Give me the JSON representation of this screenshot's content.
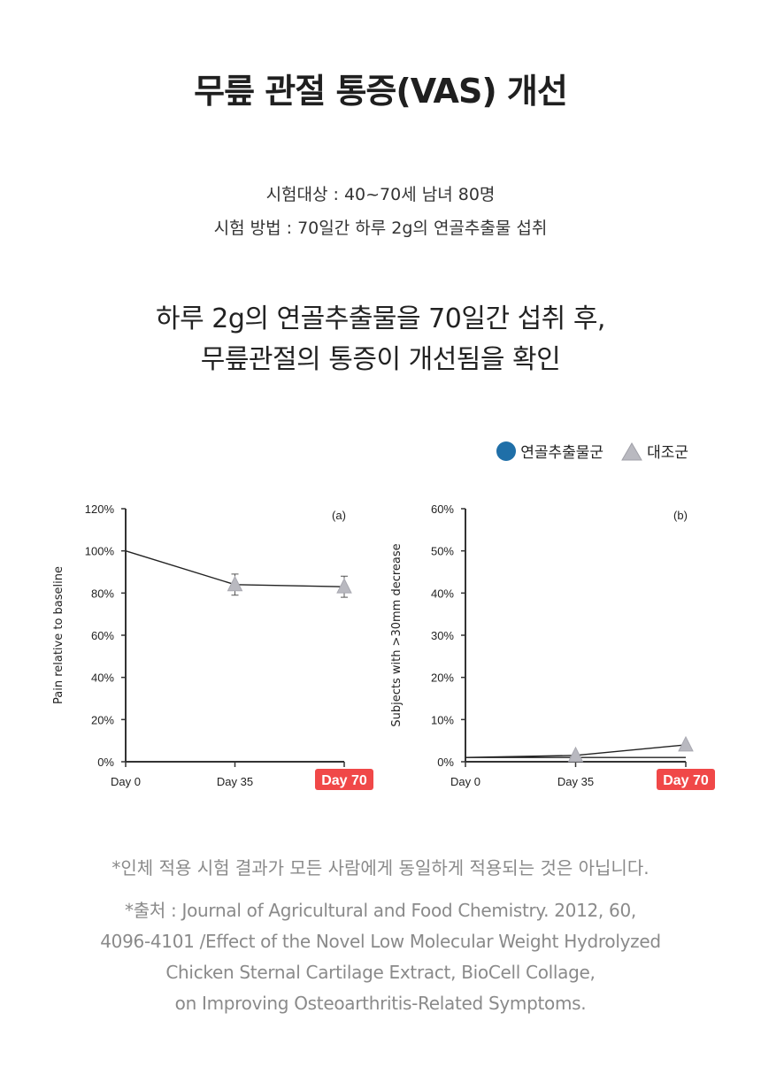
{
  "title": "무릎 관절 통증(VAS) 개선",
  "info": {
    "subjects": "시험대상 : 40~70세 남녀 80명",
    "method": "시험 방법 : 70일간 하루 2g의 연골추출물 섭취"
  },
  "headline": {
    "line1": "하루 2g의 연골추출물을 70일간 섭취 후,",
    "line2": "무릎관절의 통증이 개선됨을 확인"
  },
  "legend": {
    "series1": "연골추출물군",
    "series2": "대조군"
  },
  "colors": {
    "series1": "#1f6fa8",
    "series2": "#b9b9c0",
    "highlight": "#f04848"
  },
  "chart_data": [
    {
      "type": "line",
      "panel_label": "(a)",
      "ylabel": "Pain relative to baseline",
      "x": [
        "Day 0",
        "Day 35",
        "Day 70"
      ],
      "highlight_x": "Day 70",
      "ylim": [
        0,
        120
      ],
      "yticks": [
        "0%",
        "20%",
        "40%",
        "60%",
        "80%",
        "100%",
        "120%"
      ],
      "yticks_values": [
        0,
        20,
        40,
        60,
        80,
        100,
        120
      ],
      "series": [
        {
          "values": [
            100,
            84,
            83
          ],
          "errors": [
            0,
            5,
            5
          ],
          "markers": [
            false,
            true,
            true
          ]
        }
      ]
    },
    {
      "type": "line",
      "panel_label": "(b)",
      "ylabel": "Subjects with >30mm decrease",
      "x": [
        "Day 0",
        "Day 35",
        "Day 70"
      ],
      "highlight_x": "Day 70",
      "ylim": [
        0,
        60
      ],
      "yticks": [
        "0%",
        "10%",
        "20%",
        "30%",
        "40%",
        "50%",
        "60%"
      ],
      "yticks_values": [
        0,
        10,
        20,
        30,
        40,
        50,
        60
      ],
      "series": [
        {
          "values": [
            1,
            1,
            1
          ],
          "markers": [
            false,
            false,
            false
          ]
        },
        {
          "values": [
            1,
            1.5,
            4
          ],
          "markers": [
            false,
            true,
            true
          ]
        }
      ]
    }
  ],
  "footnote": "*인체 적용 시험 결과가 모든 사람에게 동일하게 적용되는 것은 아닙니다.",
  "source": {
    "line1": "*출처 : Journal of Agricultural and Food Chemistry. 2012, 60,",
    "line2": "4096-4101 /Effect of the Novel Low Molecular Weight Hydrolyzed",
    "line3": "Chicken Sternal Cartilage Extract, BioCell Collage,",
    "line4": "on Improving Osteoarthritis-Related Symptoms."
  }
}
